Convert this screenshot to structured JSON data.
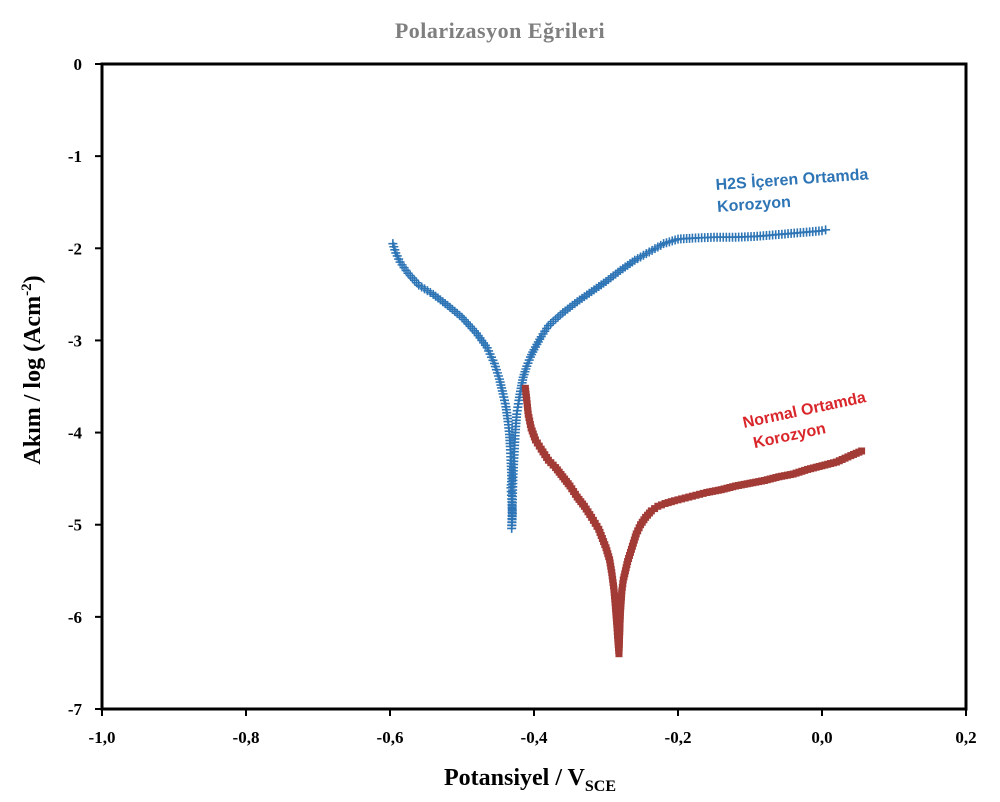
{
  "chart_data": {
    "type": "scatter",
    "title": "Polarizasyon Eğrileri",
    "xlabel": {
      "main": "Potansiyel / V",
      "sub": "SCE"
    },
    "ylabel": {
      "main": "Akım / log (Acm",
      "sup": "-2",
      "end": ")"
    },
    "xlim": [
      -1.0,
      0.2
    ],
    "ylim": [
      -7,
      0
    ],
    "xticks": [
      -1.0,
      -0.8,
      -0.6,
      -0.4,
      -0.2,
      0.0,
      0.2
    ],
    "xtick_labels": [
      "-1,0",
      "-0,8",
      "-0,6",
      "-0,4",
      "-0,2",
      "0,0",
      "0,2"
    ],
    "yticks": [
      0,
      -1,
      -2,
      -3,
      -4,
      -5,
      -6,
      -7
    ],
    "ytick_labels": [
      "0",
      "-1",
      "-2",
      "-3",
      "-4",
      "-5",
      "-6",
      "-7"
    ],
    "grid": false,
    "series": [
      {
        "name": "H2S İçeren Ortamda Korozyon",
        "label_lines": [
          "H2S İçeren Ortamda",
          "Korozyon"
        ],
        "color": "#2e75b6",
        "marker": "plus",
        "x": [
          -0.596,
          -0.592,
          -0.586,
          -0.575,
          -0.56,
          -0.54,
          -0.52,
          -0.5,
          -0.48,
          -0.465,
          -0.455,
          -0.448,
          -0.443,
          -0.439,
          -0.436,
          -0.434,
          -0.433,
          -0.432,
          -0.431,
          -0.432,
          -0.431,
          -0.43,
          -0.431,
          -0.429,
          -0.426,
          -0.424,
          -0.421,
          -0.418,
          -0.415,
          -0.41,
          -0.405,
          -0.4,
          -0.39,
          -0.38,
          -0.36,
          -0.34,
          -0.32,
          -0.3,
          -0.28,
          -0.26,
          -0.24,
          -0.22,
          -0.2,
          -0.18,
          -0.15,
          -0.12,
          -0.09,
          -0.06,
          -0.03,
          0.0,
          0.005
        ],
        "y": [
          -1.95,
          -2.05,
          -2.15,
          -2.27,
          -2.4,
          -2.5,
          -2.62,
          -2.75,
          -2.92,
          -3.08,
          -3.25,
          -3.42,
          -3.58,
          -3.72,
          -3.88,
          -4.02,
          -4.15,
          -4.3,
          -4.5,
          -4.6,
          -4.72,
          -4.88,
          -5.04,
          -4.45,
          -4.0,
          -3.8,
          -3.65,
          -3.52,
          -3.4,
          -3.28,
          -3.18,
          -3.1,
          -2.96,
          -2.84,
          -2.7,
          -2.58,
          -2.47,
          -2.36,
          -2.24,
          -2.13,
          -2.04,
          -1.95,
          -1.9,
          -1.89,
          -1.88,
          -1.88,
          -1.87,
          -1.85,
          -1.83,
          -1.81,
          -1.8
        ]
      },
      {
        "name": "Normal Ortamda Korozyon",
        "label_lines": [
          "Normal Ortamda",
          "Korozyon"
        ],
        "color": "#a23b36",
        "marker": "square",
        "x": [
          -0.412,
          -0.41,
          -0.408,
          -0.404,
          -0.398,
          -0.39,
          -0.38,
          -0.37,
          -0.36,
          -0.35,
          -0.34,
          -0.33,
          -0.32,
          -0.31,
          -0.305,
          -0.3,
          -0.295,
          -0.292,
          -0.289,
          -0.287,
          -0.285,
          -0.284,
          -0.283,
          -0.282,
          -0.28,
          -0.278,
          -0.276,
          -0.273,
          -0.27,
          -0.266,
          -0.262,
          -0.258,
          -0.252,
          -0.245,
          -0.237,
          -0.228,
          -0.218,
          -0.205,
          -0.19,
          -0.175,
          -0.16,
          -0.14,
          -0.12,
          -0.1,
          -0.08,
          -0.06,
          -0.04,
          -0.02,
          0.0,
          0.02,
          0.04,
          0.055
        ],
        "y": [
          -3.52,
          -3.65,
          -3.8,
          -3.95,
          -4.08,
          -4.18,
          -4.3,
          -4.38,
          -4.48,
          -4.58,
          -4.7,
          -4.8,
          -4.92,
          -5.05,
          -5.15,
          -5.25,
          -5.38,
          -5.52,
          -5.7,
          -5.88,
          -6.08,
          -6.2,
          -6.3,
          -6.4,
          -5.95,
          -5.72,
          -5.6,
          -5.5,
          -5.4,
          -5.3,
          -5.2,
          -5.1,
          -5.0,
          -4.92,
          -4.85,
          -4.8,
          -4.77,
          -4.74,
          -4.71,
          -4.68,
          -4.65,
          -4.62,
          -4.58,
          -4.55,
          -4.52,
          -4.48,
          -4.45,
          -4.4,
          -4.36,
          -4.32,
          -4.25,
          -4.2
        ]
      }
    ]
  }
}
